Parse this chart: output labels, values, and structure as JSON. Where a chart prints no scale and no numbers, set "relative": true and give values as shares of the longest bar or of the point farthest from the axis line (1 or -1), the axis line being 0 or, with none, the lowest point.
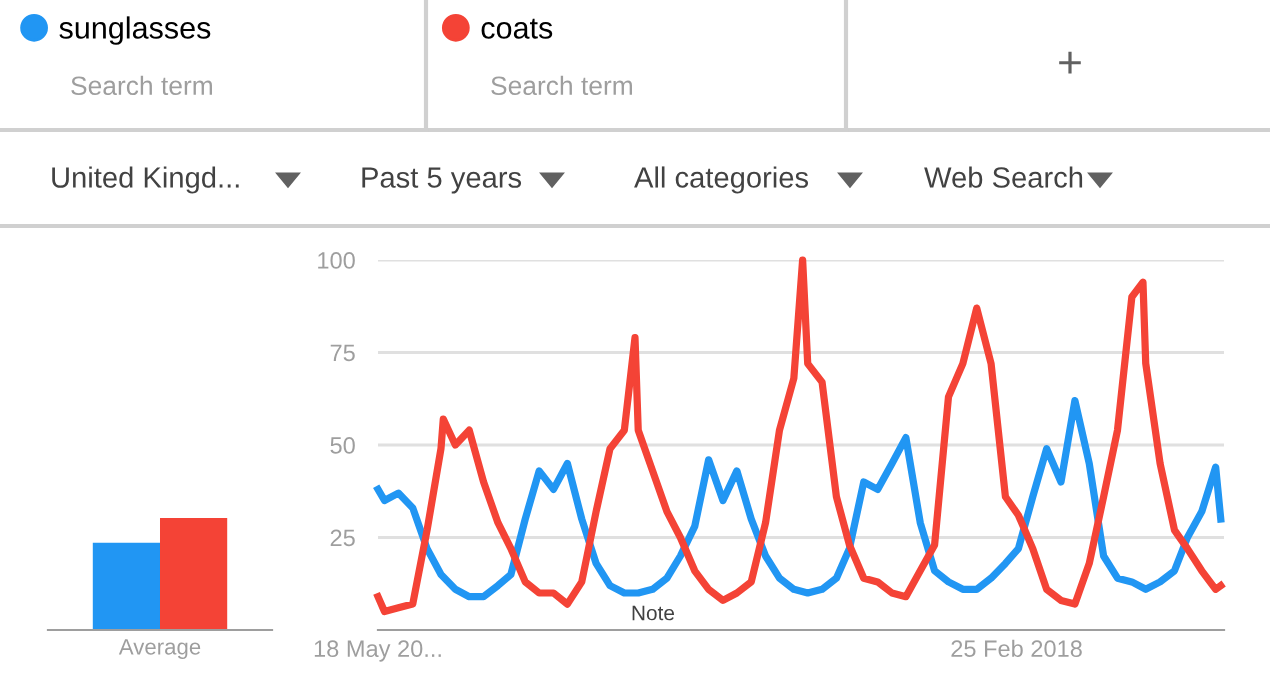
{
  "chart_data": [
    {
      "type": "other",
      "annotations": [
        "Search term",
        "Search term",
        "+",
        "United Kingd...",
        "Past 5 years",
        "All categories",
        "Web Search"
      ]
    },
    {
      "type": "bar",
      "relative": true,
      "categories": [
        "Average"
      ],
      "series": [
        {
          "color": "#2196f3",
          "values": [
            0.78
          ]
        },
        {
          "color": "#f44336",
          "values": [
            1
          ]
        }
      ]
    },
    {
      "type": "line",
      "legend": "top left",
      "grid": "y",
      "marker": "none",
      "line_style": "solid",
      "xlim": [
        "2014-05-18",
        "2019-05-19"
      ],
      "ylim": [
        0,
        100
      ],
      "yticks": [
        25,
        50,
        75,
        100
      ],
      "xticks": [
        {
          "value": "2014-05-18",
          "label": "18 May 20..."
        },
        {
          "value": "2018-02-25",
          "label": "25 Feb 2018"
        }
      ],
      "annotations": [
        "Note"
      ],
      "series": [
        {
          "name": "sunglasses",
          "color": "#2196f3",
          "x": [
            "2014-05-18",
            "2014-06",
            "2014-07",
            "2014-08",
            "2014-09",
            "2014-10",
            "2014-11",
            "2014-12",
            "2015-01",
            "2015-02",
            "2015-03",
            "2015-04",
            "2015-05",
            "2015-06",
            "2015-07",
            "2015-08",
            "2015-09",
            "2015-10",
            "2015-11",
            "2015-12",
            "2016-01",
            "2016-02",
            "2016-03",
            "2016-04",
            "2016-05",
            "2016-06",
            "2016-07",
            "2016-08",
            "2016-09",
            "2016-10",
            "2016-11",
            "2016-12",
            "2017-01",
            "2017-02",
            "2017-03",
            "2017-04",
            "2017-05",
            "2017-06",
            "2017-07",
            "2017-08",
            "2017-09",
            "2017-10",
            "2017-11",
            "2017-12",
            "2018-01",
            "2018-02",
            "2018-03",
            "2018-04",
            "2018-05",
            "2018-06",
            "2018-07",
            "2018-08",
            "2018-09",
            "2018-10",
            "2018-11",
            "2018-12",
            "2019-01",
            "2019-02",
            "2019-03",
            "2019-04",
            "2019-05",
            "2019-05-12"
          ],
          "values": [
            38,
            35,
            37,
            33,
            22,
            15,
            11,
            9,
            9,
            12,
            15,
            30,
            43,
            38,
            45,
            30,
            18,
            12,
            10,
            10,
            11,
            14,
            20,
            28,
            46,
            35,
            43,
            30,
            20,
            14,
            11,
            10,
            11,
            14,
            22,
            40,
            38,
            45,
            52,
            29,
            16,
            13,
            11,
            11,
            14,
            18,
            22,
            36,
            49,
            40,
            62,
            45,
            20,
            14,
            13,
            11,
            13,
            16,
            25,
            32,
            44,
            30
          ]
        },
        {
          "name": "coats",
          "color": "#f44336",
          "x": [
            "2014-05-18",
            "2014-06",
            "2014-07",
            "2014-08",
            "2014-09",
            "2014-10",
            "2014-10-06",
            "2014-11",
            "2014-12",
            "2015-01",
            "2015-02",
            "2015-03",
            "2015-04",
            "2015-05",
            "2015-06",
            "2015-07",
            "2015-08",
            "2015-09",
            "2015-10",
            "2015-11",
            "2015-11-24",
            "2015-12",
            "2016-01",
            "2016-02",
            "2016-03",
            "2016-04",
            "2016-05",
            "2016-06",
            "2016-07",
            "2016-08",
            "2016-09",
            "2016-10",
            "2016-11",
            "2016-11-20",
            "2016-12",
            "2017-01",
            "2017-02",
            "2017-03",
            "2017-04",
            "2017-05",
            "2017-06",
            "2017-07",
            "2017-08",
            "2017-09",
            "2017-10",
            "2017-11",
            "2017-12",
            "2018-01",
            "2018-02",
            "2018-03",
            "2018-04",
            "2018-05",
            "2018-06",
            "2018-07",
            "2018-08",
            "2018-09",
            "2018-10",
            "2018-11",
            "2018-11-25",
            "2018-12",
            "2019-01",
            "2019-02",
            "2019-03",
            "2019-04",
            "2019-05",
            "2019-05-12"
          ],
          "values": [
            9,
            5,
            6,
            7,
            27,
            49,
            57,
            50,
            54,
            40,
            29,
            22,
            13,
            10,
            10,
            7,
            13,
            32,
            49,
            54,
            79,
            54,
            43,
            32,
            25,
            16,
            11,
            8,
            10,
            13,
            29,
            54,
            68,
            100,
            72,
            67,
            36,
            23,
            14,
            13,
            10,
            9,
            16,
            23,
            63,
            72,
            87,
            72,
            36,
            31,
            22,
            11,
            8,
            7,
            18,
            36,
            54,
            90,
            94,
            72,
            45,
            27,
            22,
            16,
            11,
            12
          ]
        }
      ]
    }
  ]
}
